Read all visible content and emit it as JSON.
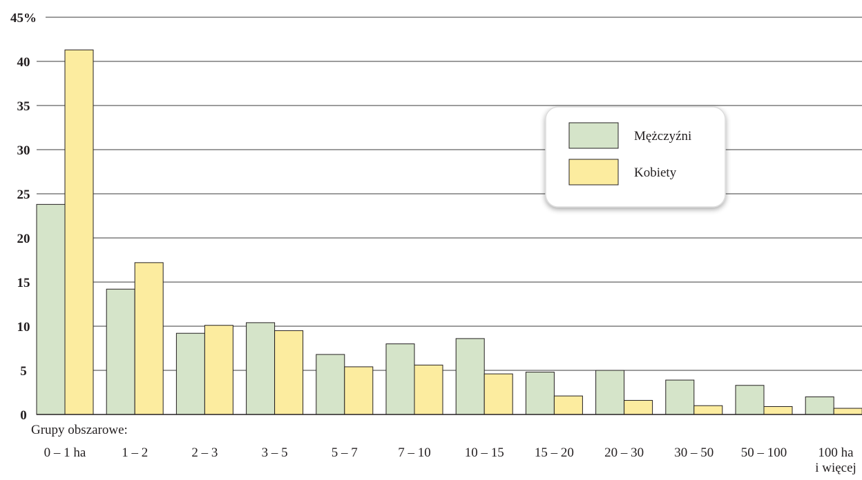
{
  "chart_data": {
    "type": "bar",
    "title": "",
    "xlabel": "Grupy obszarowe:",
    "ylabel": "",
    "ylim": [
      0,
      45
    ],
    "yticks": [
      0,
      5,
      10,
      15,
      20,
      25,
      30,
      35,
      40,
      45
    ],
    "ytick_labels": [
      "0",
      "5",
      "10",
      "15",
      "20",
      "25",
      "30",
      "35",
      "40",
      "45%"
    ],
    "grid": true,
    "legend_position": "top-right",
    "categories": [
      "0 – 1 ha",
      "1 – 2",
      "2 – 3",
      "3 – 5",
      "5 – 7",
      "7 – 10",
      "10 – 15",
      "15 – 20",
      "20 – 30",
      "30 – 50",
      "50 – 100",
      "100 ha\ni więcej"
    ],
    "series": [
      {
        "name": "Mężczyźni",
        "color": "#d5e4c9",
        "values": [
          23.8,
          14.2,
          9.2,
          10.4,
          6.8,
          8.0,
          8.6,
          4.8,
          5.0,
          3.9,
          3.3,
          2.0
        ]
      },
      {
        "name": "Kobiety",
        "color": "#fcec9f",
        "values": [
          41.3,
          17.2,
          10.1,
          9.5,
          5.4,
          5.6,
          4.6,
          2.1,
          1.6,
          1.0,
          0.9,
          0.7
        ]
      }
    ]
  }
}
